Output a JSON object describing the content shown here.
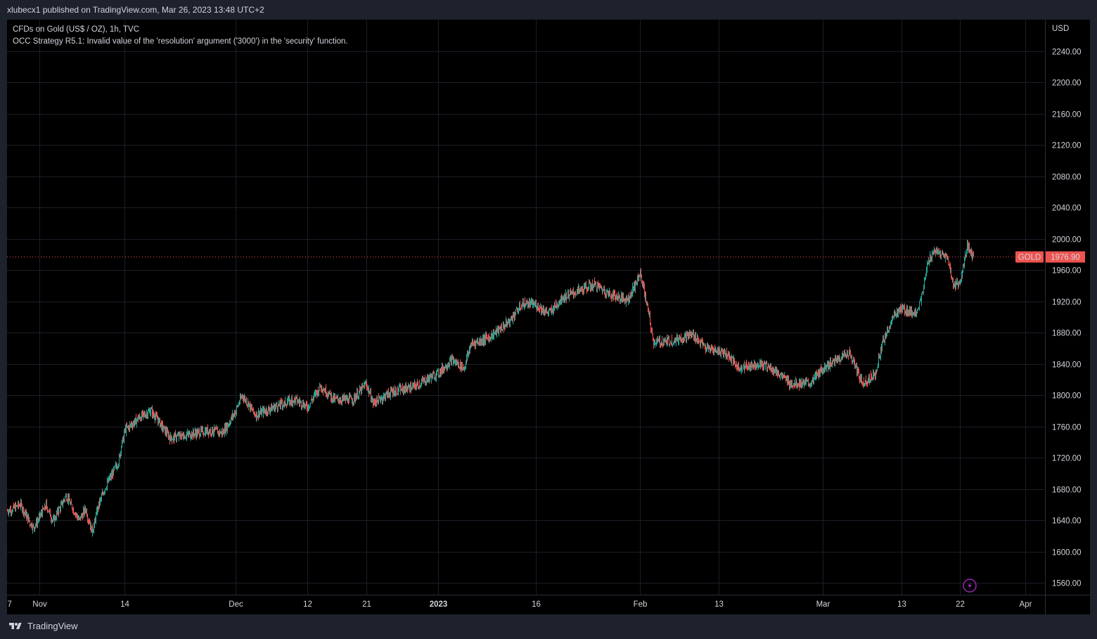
{
  "header": {
    "publish_line": "xlubecx1 published on TradingView.com, Mar 26, 2023 13:48 UTC+2"
  },
  "legend": {
    "symbol_line": "CFDs on Gold (US$ / OZ), 1h, TVC",
    "error_line": "OCC Strategy R5.1: Invalid value of the 'resolution' argument ('3000') in the 'security' function."
  },
  "footer": {
    "brand": "TradingView",
    "logo_icon": "tradingview-logo-icon"
  },
  "colors": {
    "up": "#26a69a",
    "down": "#ef5350",
    "background": "#000000",
    "grid": "#1a1e27",
    "price_line": "#ef5350"
  },
  "chart_data": {
    "type": "candlestick",
    "symbol": "GOLD",
    "currency": "USD",
    "last_price": 1976.9,
    "last_price_label": "1976.90",
    "ylim": [
      1545,
      2280
    ],
    "y_ticks": [
      1560,
      1600,
      1640,
      1680,
      1720,
      1760,
      1800,
      1840,
      1880,
      1920,
      1960,
      2000,
      2040,
      2080,
      2120,
      2160,
      2200,
      2240
    ],
    "y_tick_labels": [
      "1560.00",
      "1600.00",
      "1640.00",
      "1680.00",
      "1720.00",
      "1760.00",
      "1800.00",
      "1840.00",
      "1880.00",
      "1920.00",
      "1960.00",
      "2000.00",
      "2040.00",
      "2080.00",
      "2120.00",
      "2160.00",
      "2200.00",
      "2240.00"
    ],
    "x_range": [
      "2022-10-27",
      "2023-04-04"
    ],
    "x_ticks": [
      {
        "date": "2022-10-27",
        "label": "7"
      },
      {
        "date": "2022-11-01",
        "label": "Nov"
      },
      {
        "date": "2022-11-14",
        "label": "14"
      },
      {
        "date": "2022-12-01",
        "label": "Dec"
      },
      {
        "date": "2022-12-12",
        "label": "12"
      },
      {
        "date": "2022-12-21",
        "label": "21"
      },
      {
        "date": "2023-01-01",
        "label": "2023"
      },
      {
        "date": "2023-01-16",
        "label": "16"
      },
      {
        "date": "2023-02-01",
        "label": "Feb"
      },
      {
        "date": "2023-02-13",
        "label": "13"
      },
      {
        "date": "2023-03-01",
        "label": "Mar"
      },
      {
        "date": "2023-03-13",
        "label": "13"
      },
      {
        "date": "2023-03-22",
        "label": "22"
      },
      {
        "date": "2023-04-01",
        "label": "Apr"
      }
    ],
    "close_path": [
      {
        "date": "2022-10-27",
        "close": 1652
      },
      {
        "date": "2022-10-29",
        "close": 1660
      },
      {
        "date": "2022-10-31",
        "close": 1630
      },
      {
        "date": "2022-11-02",
        "close": 1660
      },
      {
        "date": "2022-11-03",
        "close": 1638
      },
      {
        "date": "2022-11-05",
        "close": 1672
      },
      {
        "date": "2022-11-07",
        "close": 1640
      },
      {
        "date": "2022-11-08",
        "close": 1655
      },
      {
        "date": "2022-11-09",
        "close": 1625
      },
      {
        "date": "2022-11-10",
        "close": 1660
      },
      {
        "date": "2022-11-11",
        "close": 1682
      },
      {
        "date": "2022-11-13",
        "close": 1715
      },
      {
        "date": "2022-11-14",
        "close": 1755
      },
      {
        "date": "2022-11-16",
        "close": 1770
      },
      {
        "date": "2022-11-18",
        "close": 1780
      },
      {
        "date": "2022-11-21",
        "close": 1745
      },
      {
        "date": "2022-11-24",
        "close": 1750
      },
      {
        "date": "2022-11-27",
        "close": 1755
      },
      {
        "date": "2022-11-29",
        "close": 1752
      },
      {
        "date": "2022-12-01",
        "close": 1780
      },
      {
        "date": "2022-12-02",
        "close": 1800
      },
      {
        "date": "2022-12-04",
        "close": 1775
      },
      {
        "date": "2022-12-07",
        "close": 1785
      },
      {
        "date": "2022-12-10",
        "close": 1795
      },
      {
        "date": "2022-12-12",
        "close": 1785
      },
      {
        "date": "2022-12-14",
        "close": 1812
      },
      {
        "date": "2022-12-16",
        "close": 1795
      },
      {
        "date": "2022-12-19",
        "close": 1795
      },
      {
        "date": "2022-12-21",
        "close": 1815
      },
      {
        "date": "2022-12-22",
        "close": 1790
      },
      {
        "date": "2022-12-25",
        "close": 1805
      },
      {
        "date": "2022-12-28",
        "close": 1810
      },
      {
        "date": "2023-01-01",
        "close": 1828
      },
      {
        "date": "2023-01-03",
        "close": 1845
      },
      {
        "date": "2023-01-05",
        "close": 1835
      },
      {
        "date": "2023-01-06",
        "close": 1865
      },
      {
        "date": "2023-01-09",
        "close": 1875
      },
      {
        "date": "2023-01-12",
        "close": 1895
      },
      {
        "date": "2023-01-14",
        "close": 1918
      },
      {
        "date": "2023-01-16",
        "close": 1915
      },
      {
        "date": "2023-01-18",
        "close": 1905
      },
      {
        "date": "2023-01-20",
        "close": 1925
      },
      {
        "date": "2023-01-23",
        "close": 1935
      },
      {
        "date": "2023-01-25",
        "close": 1942
      },
      {
        "date": "2023-01-27",
        "close": 1930
      },
      {
        "date": "2023-01-30",
        "close": 1922
      },
      {
        "date": "2023-02-01",
        "close": 1955
      },
      {
        "date": "2023-02-02",
        "close": 1915
      },
      {
        "date": "2023-02-03",
        "close": 1868
      },
      {
        "date": "2023-02-06",
        "close": 1870
      },
      {
        "date": "2023-02-09",
        "close": 1878
      },
      {
        "date": "2023-02-11",
        "close": 1860
      },
      {
        "date": "2023-02-14",
        "close": 1855
      },
      {
        "date": "2023-02-16",
        "close": 1835
      },
      {
        "date": "2023-02-19",
        "close": 1840
      },
      {
        "date": "2023-02-21",
        "close": 1835
      },
      {
        "date": "2023-02-24",
        "close": 1815
      },
      {
        "date": "2023-02-27",
        "close": 1815
      },
      {
        "date": "2023-03-01",
        "close": 1835
      },
      {
        "date": "2023-03-03",
        "close": 1845
      },
      {
        "date": "2023-03-05",
        "close": 1855
      },
      {
        "date": "2023-03-07",
        "close": 1815
      },
      {
        "date": "2023-03-09",
        "close": 1828
      },
      {
        "date": "2023-03-10",
        "close": 1865
      },
      {
        "date": "2023-03-12",
        "close": 1905
      },
      {
        "date": "2023-03-13",
        "close": 1910
      },
      {
        "date": "2023-03-15",
        "close": 1905
      },
      {
        "date": "2023-03-16",
        "close": 1920
      },
      {
        "date": "2023-03-17",
        "close": 1970
      },
      {
        "date": "2023-03-18",
        "close": 1985
      },
      {
        "date": "2023-03-20",
        "close": 1975
      },
      {
        "date": "2023-03-21",
        "close": 1940
      },
      {
        "date": "2023-03-22",
        "close": 1945
      },
      {
        "date": "2023-03-23",
        "close": 1990
      },
      {
        "date": "2023-03-24",
        "close": 1977
      }
    ]
  }
}
